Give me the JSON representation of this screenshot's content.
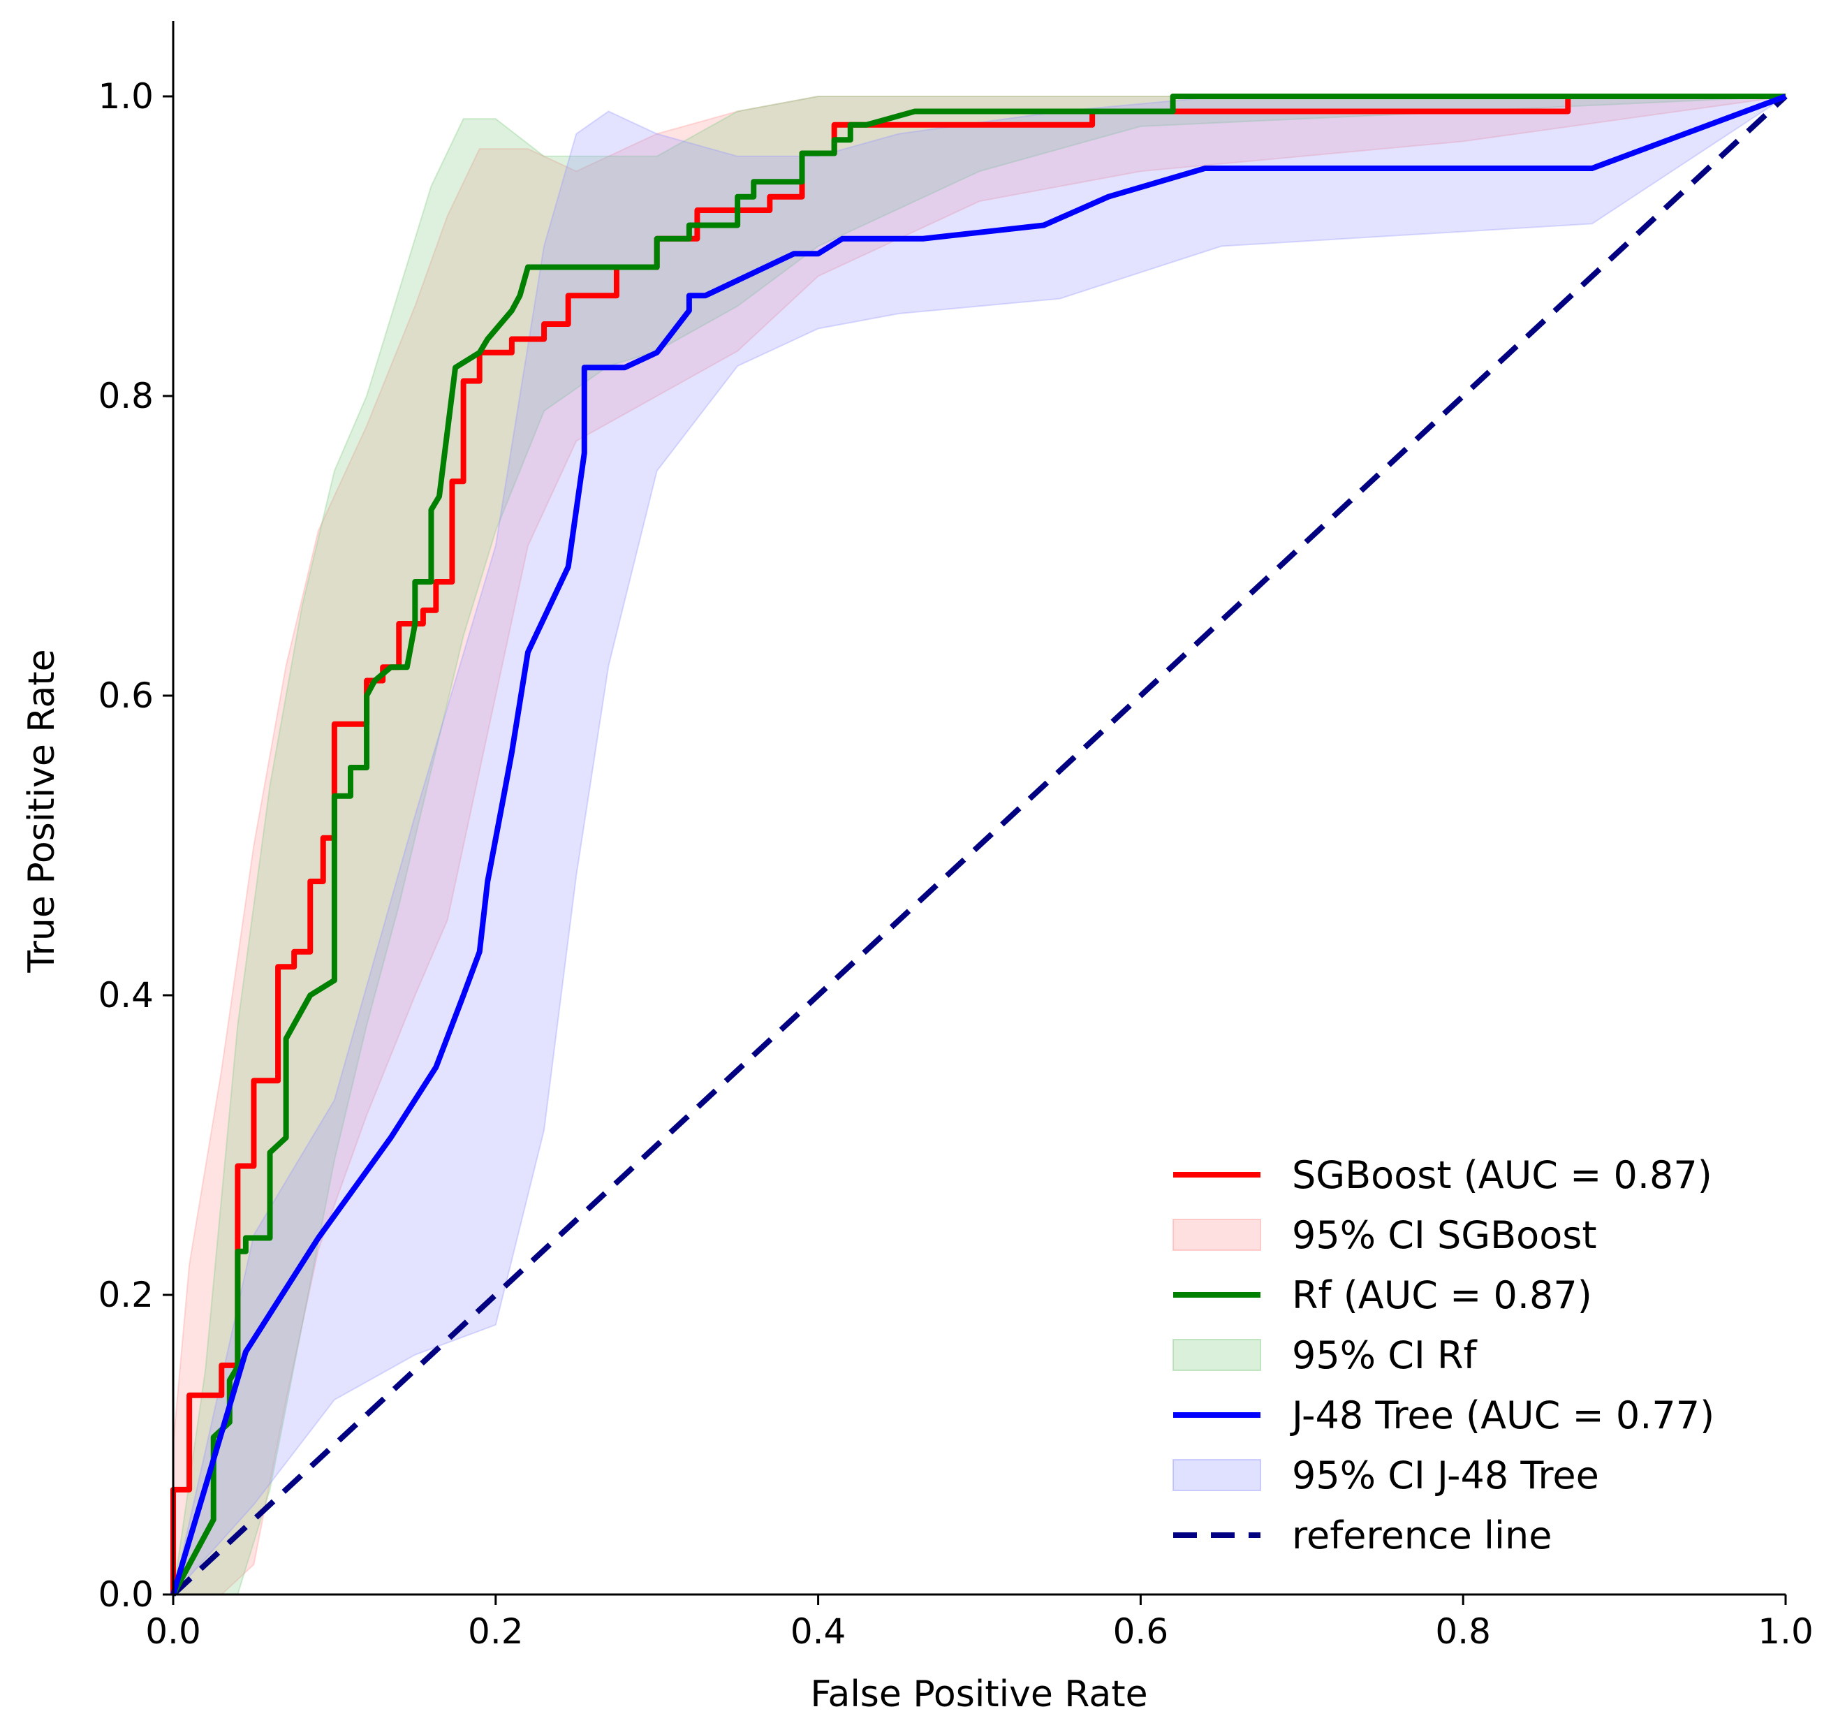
{
  "chart_data": {
    "type": "line",
    "title": "",
    "xlabel": "False Positive Rate",
    "ylabel": "True Positive Rate",
    "xlim": [
      0.0,
      1.0
    ],
    "ylim": [
      0.0,
      1.05
    ],
    "xticks": [
      "0.0",
      "0.2",
      "0.4",
      "0.6",
      "0.8",
      "1.0"
    ],
    "yticks": [
      "0.0",
      "0.2",
      "0.4",
      "0.6",
      "0.8",
      "1.0"
    ],
    "xtick_values": [
      0.0,
      0.2,
      0.4,
      0.6,
      0.8,
      1.0
    ],
    "ytick_values": [
      0.0,
      0.2,
      0.4,
      0.6,
      0.8,
      1.0
    ],
    "grid": false,
    "legend_position": "lower-right",
    "series": [
      {
        "name": "SGBoost (AUC = 0.87)",
        "ci_name": "95% CI SGBoost",
        "color": "#ff0000",
        "ci_color": "#ff9999",
        "x": [
          0.0,
          0.0,
          0.01,
          0.01,
          0.03,
          0.03,
          0.04,
          0.04,
          0.05,
          0.05,
          0.065,
          0.065,
          0.075,
          0.075,
          0.085,
          0.085,
          0.093,
          0.093,
          0.1,
          0.1,
          0.12,
          0.12,
          0.13,
          0.13,
          0.14,
          0.14,
          0.155,
          0.155,
          0.163,
          0.163,
          0.173,
          0.173,
          0.18,
          0.18,
          0.19,
          0.19,
          0.21,
          0.21,
          0.23,
          0.23,
          0.245,
          0.245,
          0.275,
          0.275,
          0.3,
          0.3,
          0.325,
          0.325,
          0.37,
          0.37,
          0.39,
          0.39,
          0.41,
          0.41,
          0.57,
          0.57,
          0.865,
          0.865,
          1.0
        ],
        "y": [
          0.0,
          0.07,
          0.07,
          0.133,
          0.133,
          0.153,
          0.153,
          0.286,
          0.286,
          0.343,
          0.343,
          0.419,
          0.419,
          0.429,
          0.429,
          0.476,
          0.476,
          0.505,
          0.505,
          0.581,
          0.581,
          0.61,
          0.61,
          0.619,
          0.619,
          0.648,
          0.648,
          0.657,
          0.657,
          0.676,
          0.676,
          0.743,
          0.743,
          0.81,
          0.81,
          0.829,
          0.829,
          0.838,
          0.838,
          0.848,
          0.848,
          0.867,
          0.867,
          0.886,
          0.886,
          0.905,
          0.905,
          0.924,
          0.924,
          0.933,
          0.933,
          0.962,
          0.962,
          0.981,
          0.981,
          0.99,
          0.99,
          1.0,
          1.0
        ],
        "ci_x": [
          0.0,
          0.01,
          0.03,
          0.05,
          0.07,
          0.09,
          0.12,
          0.15,
          0.17,
          0.19,
          0.22,
          0.25,
          0.3,
          0.35,
          0.4,
          0.5,
          0.6,
          0.8,
          1.0
        ],
        "ci_upper": [
          0.1,
          0.22,
          0.35,
          0.5,
          0.62,
          0.71,
          0.78,
          0.86,
          0.92,
          0.965,
          0.965,
          0.95,
          0.975,
          0.99,
          1.0,
          1.0,
          1.0,
          1.0,
          1.0
        ],
        "ci_lower": [
          0.0,
          0.0,
          0.0,
          0.02,
          0.13,
          0.23,
          0.32,
          0.4,
          0.45,
          0.55,
          0.7,
          0.77,
          0.8,
          0.83,
          0.88,
          0.93,
          0.95,
          0.97,
          1.0
        ]
      },
      {
        "name": "Rf (AUC = 0.87)",
        "ci_name": "95% CI Rf",
        "color": "#008000",
        "ci_color": "#88cc88",
        "x": [
          0.0,
          0.01,
          0.02,
          0.025,
          0.025,
          0.035,
          0.035,
          0.04,
          0.04,
          0.045,
          0.045,
          0.06,
          0.06,
          0.07,
          0.07,
          0.085,
          0.085,
          0.1,
          0.1,
          0.11,
          0.11,
          0.12,
          0.12,
          0.125,
          0.135,
          0.145,
          0.15,
          0.15,
          0.16,
          0.16,
          0.165,
          0.165,
          0.175,
          0.175,
          0.19,
          0.19,
          0.195,
          0.195,
          0.21,
          0.21,
          0.215,
          0.215,
          0.22,
          0.22,
          0.3,
          0.3,
          0.32,
          0.32,
          0.35,
          0.35,
          0.36,
          0.36,
          0.39,
          0.39,
          0.41,
          0.41,
          0.42,
          0.42,
          0.43,
          0.43,
          0.46,
          0.46,
          0.62,
          0.62,
          0.64,
          0.64,
          1.0
        ],
        "y": [
          0.0,
          0.02,
          0.04,
          0.05,
          0.105,
          0.115,
          0.143,
          0.152,
          0.229,
          0.229,
          0.238,
          0.238,
          0.295,
          0.305,
          0.371,
          0.4,
          0.4,
          0.41,
          0.533,
          0.533,
          0.552,
          0.552,
          0.6,
          0.61,
          0.619,
          0.619,
          0.648,
          0.676,
          0.676,
          0.724,
          0.733,
          0.733,
          0.819,
          0.819,
          0.829,
          0.829,
          0.838,
          0.838,
          0.857,
          0.857,
          0.867,
          0.867,
          0.886,
          0.886,
          0.886,
          0.905,
          0.905,
          0.914,
          0.914,
          0.933,
          0.933,
          0.943,
          0.943,
          0.962,
          0.962,
          0.971,
          0.971,
          0.981,
          0.981,
          0.981,
          0.99,
          0.99,
          0.99,
          1.0,
          1.0,
          1.0,
          1.0
        ],
        "ci_x": [
          0.0,
          0.02,
          0.04,
          0.06,
          0.08,
          0.1,
          0.12,
          0.14,
          0.16,
          0.18,
          0.2,
          0.23,
          0.27,
          0.3,
          0.35,
          0.4,
          0.5,
          0.6,
          0.8,
          1.0
        ],
        "ci_upper": [
          0.0,
          0.15,
          0.38,
          0.54,
          0.66,
          0.75,
          0.8,
          0.87,
          0.94,
          0.985,
          0.985,
          0.96,
          0.96,
          0.96,
          0.99,
          1.0,
          1.0,
          1.0,
          1.0,
          1.0
        ],
        "ci_lower": [
          0.0,
          0.0,
          0.0,
          0.07,
          0.18,
          0.29,
          0.38,
          0.46,
          0.55,
          0.64,
          0.71,
          0.79,
          0.82,
          0.83,
          0.86,
          0.9,
          0.95,
          0.98,
          0.99,
          1.0
        ]
      },
      {
        "name": "J-48 Tree (AUC = 0.77)",
        "ci_name": "95% CI J-48 Tree",
        "color": "#0000ff",
        "ci_color": "#9999ff",
        "x": [
          0.0,
          0.045,
          0.09,
          0.135,
          0.163,
          0.18,
          0.19,
          0.195,
          0.205,
          0.21,
          0.22,
          0.245,
          0.255,
          0.255,
          0.26,
          0.28,
          0.3,
          0.32,
          0.32,
          0.33,
          0.385,
          0.4,
          0.415,
          0.465,
          0.54,
          0.58,
          0.64,
          0.88,
          1.0
        ],
        "y": [
          0.0,
          0.162,
          0.238,
          0.305,
          0.352,
          0.4,
          0.429,
          0.476,
          0.533,
          0.562,
          0.629,
          0.686,
          0.762,
          0.819,
          0.819,
          0.819,
          0.829,
          0.857,
          0.867,
          0.867,
          0.895,
          0.895,
          0.905,
          0.905,
          0.914,
          0.933,
          0.952,
          0.952,
          1.0
        ],
        "ci_x": [
          0.0,
          0.05,
          0.1,
          0.15,
          0.2,
          0.23,
          0.25,
          0.27,
          0.3,
          0.35,
          0.4,
          0.45,
          0.55,
          0.65,
          0.88,
          1.0
        ],
        "ci_upper": [
          0.0,
          0.24,
          0.33,
          0.52,
          0.7,
          0.9,
          0.975,
          0.99,
          0.975,
          0.96,
          0.96,
          0.975,
          0.99,
          1.0,
          1.0,
          1.0
        ],
        "ci_lower": [
          0.0,
          0.06,
          0.13,
          0.16,
          0.18,
          0.31,
          0.48,
          0.62,
          0.75,
          0.82,
          0.845,
          0.855,
          0.865,
          0.9,
          0.915,
          1.0
        ]
      }
    ],
    "reference_line": {
      "name": "reference line",
      "color": "#000080",
      "x": [
        0.0,
        1.0
      ],
      "y": [
        0.0,
        1.0
      ]
    }
  }
}
